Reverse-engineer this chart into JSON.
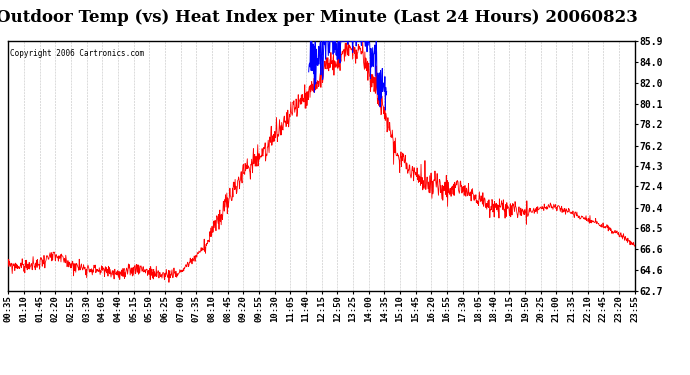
{
  "title": "Outdoor Temp (vs) Heat Index per Minute (Last 24 Hours) 20060823",
  "copyright": "Copyright 2006 Cartronics.com",
  "y_ticks": [
    85.9,
    84.0,
    82.0,
    80.1,
    78.2,
    76.2,
    74.3,
    72.4,
    70.4,
    68.5,
    66.6,
    64.6,
    62.7
  ],
  "ymin": 62.7,
  "ymax": 85.9,
  "xtick_labels": [
    "00:35",
    "01:10",
    "01:45",
    "02:20",
    "02:55",
    "03:30",
    "04:05",
    "04:40",
    "05:15",
    "05:50",
    "06:25",
    "07:00",
    "07:35",
    "08:10",
    "08:45",
    "09:20",
    "09:55",
    "10:30",
    "11:05",
    "11:40",
    "12:15",
    "12:50",
    "13:25",
    "14:00",
    "14:35",
    "15:10",
    "15:45",
    "16:20",
    "16:55",
    "17:30",
    "18:05",
    "18:40",
    "19:15",
    "19:50",
    "20:25",
    "21:00",
    "21:35",
    "22:10",
    "22:45",
    "23:20",
    "23:55"
  ],
  "background_color": "#ffffff",
  "grid_color": "#bbbbbb",
  "red_color": "#ff0000",
  "blue_color": "#0000ff",
  "title_fontsize": 12,
  "tick_fontsize": 6.5
}
